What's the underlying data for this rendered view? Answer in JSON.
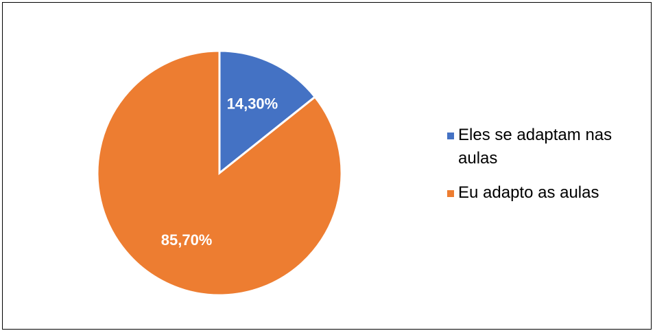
{
  "chart_data": {
    "type": "pie",
    "categories": [
      "Eles se adaptam nas aulas",
      "Eu adapto as aulas"
    ],
    "values": [
      14.3,
      85.7
    ],
    "value_labels": [
      "14,30%",
      "85,70%"
    ],
    "colors": [
      "#4472c4",
      "#ed7d31"
    ],
    "legend": "right"
  }
}
